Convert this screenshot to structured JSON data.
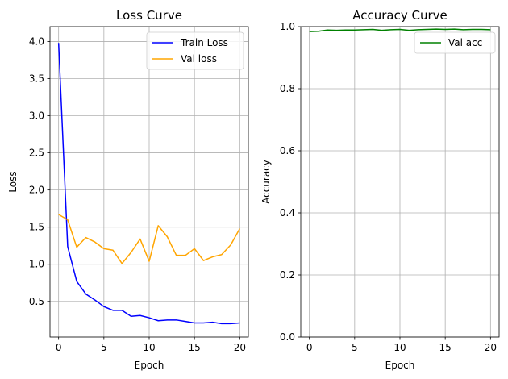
{
  "chart_data": [
    {
      "type": "line",
      "title": "Loss Curve",
      "xlabel": "Epoch",
      "ylabel": "Loss",
      "xlim": [
        -0.95,
        20.95
      ],
      "ylim": [
        0.02,
        4.2
      ],
      "xticks": [
        0,
        5,
        10,
        15,
        20
      ],
      "yticks": [
        0.5,
        1.0,
        1.5,
        2.0,
        2.5,
        3.0,
        3.5,
        4.0
      ],
      "ytick_labels": [
        "0.5",
        "1.0",
        "1.5",
        "2.0",
        "2.5",
        "3.0",
        "3.5",
        "4.0"
      ],
      "grid": true,
      "legend_position": "upper right",
      "x": [
        0,
        1,
        2,
        3,
        4,
        5,
        6,
        7,
        8,
        9,
        10,
        11,
        12,
        13,
        14,
        15,
        16,
        17,
        18,
        19,
        20
      ],
      "series": [
        {
          "name": "Train Loss",
          "color": "#0000ff",
          "values": [
            3.98,
            1.24,
            0.77,
            0.6,
            0.52,
            0.43,
            0.38,
            0.38,
            0.3,
            0.31,
            0.28,
            0.24,
            0.25,
            0.25,
            0.23,
            0.21,
            0.21,
            0.22,
            0.2,
            0.2,
            0.21
          ]
        },
        {
          "name": "Val loss",
          "color": "#ffa500",
          "values": [
            1.67,
            1.6,
            1.23,
            1.36,
            1.3,
            1.21,
            1.19,
            1.01,
            1.16,
            1.34,
            1.04,
            1.52,
            1.37,
            1.12,
            1.12,
            1.21,
            1.05,
            1.1,
            1.13,
            1.26,
            1.48
          ]
        }
      ]
    },
    {
      "type": "line",
      "title": "Accuracy Curve",
      "xlabel": "Epoch",
      "ylabel": "Accuracy",
      "xlim": [
        -0.95,
        20.95
      ],
      "ylim": [
        0,
        1.0
      ],
      "xticks": [
        0,
        5,
        10,
        15,
        20
      ],
      "yticks": [
        0.0,
        0.2,
        0.4,
        0.6,
        0.8,
        1.0
      ],
      "ytick_labels": [
        "0.0",
        "0.2",
        "0.4",
        "0.6",
        "0.8",
        "1.0"
      ],
      "grid": true,
      "legend_position": "upper right",
      "x": [
        0,
        1,
        2,
        3,
        4,
        5,
        6,
        7,
        8,
        9,
        10,
        11,
        12,
        13,
        14,
        15,
        16,
        17,
        18,
        19,
        20
      ],
      "series": [
        {
          "name": "Val acc",
          "color": "#008000",
          "values": [
            0.984,
            0.985,
            0.989,
            0.988,
            0.989,
            0.989,
            0.99,
            0.991,
            0.988,
            0.99,
            0.991,
            0.988,
            0.99,
            0.991,
            0.992,
            0.991,
            0.992,
            0.99,
            0.991,
            0.991,
            0.99
          ]
        }
      ]
    }
  ]
}
